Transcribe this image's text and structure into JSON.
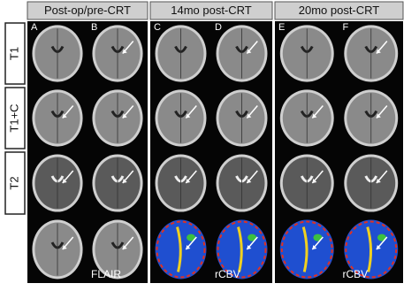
{
  "headers": [
    "Post-op/pre-CRT",
    "14mo post-CRT",
    "20mo post-CRT"
  ],
  "row_labels": [
    "T1",
    "T1+C",
    "T2"
  ],
  "panel_letters": [
    "A",
    "B",
    "C",
    "D",
    "E",
    "F"
  ],
  "sequence_labels": [
    "FLAIR",
    "rCBV",
    "rCBV"
  ]
}
